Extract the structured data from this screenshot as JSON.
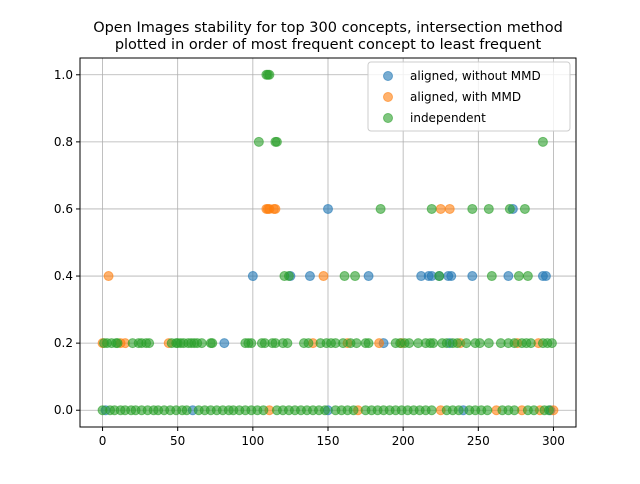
{
  "chart_data": {
    "type": "scatter",
    "title_lines": [
      "Open Images stability for top 300 concepts, intersection method",
      "plotted in order of most frequent concept to least frequent"
    ],
    "xlabel": "",
    "ylabel": "",
    "xlim": [
      -15,
      315
    ],
    "ylim": [
      -0.05,
      1.05
    ],
    "x_ticks": [
      0,
      50,
      100,
      150,
      200,
      250,
      300
    ],
    "y_ticks": [
      0.0,
      0.2,
      0.4,
      0.6,
      0.8,
      1.0
    ],
    "x_tick_labels": [
      "0",
      "50",
      "100",
      "150",
      "200",
      "250",
      "300"
    ],
    "y_tick_labels": [
      "0.0",
      "0.2",
      "0.4",
      "0.6",
      "0.8",
      "1.0"
    ],
    "grid": true,
    "legend_position": "top-right",
    "series": [
      {
        "name": "aligned, without MMD",
        "color": "#1f77b4",
        "points": [
          [
            100,
            0.4
          ],
          [
            125,
            0.4
          ],
          [
            138,
            0.4
          ],
          [
            150,
            0.6
          ],
          [
            177,
            0.4
          ],
          [
            212,
            0.4
          ],
          [
            217,
            0.4
          ],
          [
            219,
            0.4
          ],
          [
            224,
            0.4
          ],
          [
            230,
            0.4
          ],
          [
            232,
            0.4
          ],
          [
            246,
            0.4
          ],
          [
            270,
            0.4
          ],
          [
            273,
            0.6
          ],
          [
            293,
            0.4
          ],
          [
            295,
            0.4
          ],
          [
            81,
            0.2
          ],
          [
            187,
            0.2
          ],
          [
            231,
            0.2
          ],
          [
            2,
            0.0
          ],
          [
            60,
            0.0
          ],
          [
            150,
            0.0
          ],
          [
            240,
            0.0
          ],
          [
            298,
            0.0
          ]
        ]
      },
      {
        "name": "aligned, with MMD",
        "color": "#ff7f0e",
        "points": [
          [
            0,
            0.2
          ],
          [
            4,
            0.4
          ],
          [
            12,
            0.2
          ],
          [
            15,
            0.2
          ],
          [
            44,
            0.2
          ],
          [
            109,
            0.6
          ],
          [
            110,
            0.6
          ],
          [
            111,
            0.6
          ],
          [
            114,
            0.6
          ],
          [
            115,
            0.6
          ],
          [
            147,
            0.4
          ],
          [
            225,
            0.6
          ],
          [
            231,
            0.6
          ],
          [
            140,
            0.2
          ],
          [
            163,
            0.2
          ],
          [
            184,
            0.2
          ],
          [
            199,
            0.2
          ],
          [
            238,
            0.2
          ],
          [
            276,
            0.2
          ],
          [
            290,
            0.2
          ],
          [
            111,
            0.0
          ],
          [
            170,
            0.0
          ],
          [
            225,
            0.0
          ],
          [
            262,
            0.0
          ],
          [
            279,
            0.0
          ],
          [
            291,
            0.0
          ],
          [
            300,
            0.0
          ]
        ]
      },
      {
        "name": "independent",
        "color": "#2ca02c",
        "points": [
          [
            104,
            0.8
          ],
          [
            115,
            0.8
          ],
          [
            116,
            0.8
          ],
          [
            109,
            1.0
          ],
          [
            110,
            1.0
          ],
          [
            111,
            1.0
          ],
          [
            293,
            0.8
          ],
          [
            185,
            0.6
          ],
          [
            219,
            0.6
          ],
          [
            246,
            0.6
          ],
          [
            257,
            0.6
          ],
          [
            271,
            0.6
          ],
          [
            281,
            0.6
          ],
          [
            121,
            0.4
          ],
          [
            124,
            0.4
          ],
          [
            161,
            0.4
          ],
          [
            168,
            0.4
          ],
          [
            224,
            0.4
          ],
          [
            259,
            0.4
          ],
          [
            277,
            0.4
          ],
          [
            283,
            0.4
          ],
          [
            1,
            0.2
          ],
          [
            3,
            0.2
          ],
          [
            6,
            0.2
          ],
          [
            9,
            0.2
          ],
          [
            10,
            0.2
          ],
          [
            20,
            0.2
          ],
          [
            24,
            0.2
          ],
          [
            26,
            0.2
          ],
          [
            29,
            0.2
          ],
          [
            31,
            0.2
          ],
          [
            46,
            0.2
          ],
          [
            49,
            0.2
          ],
          [
            50,
            0.2
          ],
          [
            52,
            0.2
          ],
          [
            54,
            0.2
          ],
          [
            57,
            0.2
          ],
          [
            59,
            0.2
          ],
          [
            61,
            0.2
          ],
          [
            63,
            0.2
          ],
          [
            66,
            0.2
          ],
          [
            72,
            0.2
          ],
          [
            73,
            0.2
          ],
          [
            95,
            0.2
          ],
          [
            97,
            0.2
          ],
          [
            99,
            0.2
          ],
          [
            106,
            0.2
          ],
          [
            108,
            0.2
          ],
          [
            113,
            0.2
          ],
          [
            115,
            0.2
          ],
          [
            120,
            0.2
          ],
          [
            123,
            0.2
          ],
          [
            134,
            0.2
          ],
          [
            137,
            0.2
          ],
          [
            145,
            0.2
          ],
          [
            149,
            0.2
          ],
          [
            152,
            0.2
          ],
          [
            155,
            0.2
          ],
          [
            160,
            0.2
          ],
          [
            165,
            0.2
          ],
          [
            169,
            0.2
          ],
          [
            175,
            0.2
          ],
          [
            177,
            0.2
          ],
          [
            195,
            0.2
          ],
          [
            198,
            0.2
          ],
          [
            201,
            0.2
          ],
          [
            204,
            0.2
          ],
          [
            210,
            0.2
          ],
          [
            215,
            0.2
          ],
          [
            218,
            0.2
          ],
          [
            220,
            0.2
          ],
          [
            226,
            0.2
          ],
          [
            229,
            0.2
          ],
          [
            233,
            0.2
          ],
          [
            236,
            0.2
          ],
          [
            242,
            0.2
          ],
          [
            248,
            0.2
          ],
          [
            251,
            0.2
          ],
          [
            257,
            0.2
          ],
          [
            265,
            0.2
          ],
          [
            270,
            0.2
          ],
          [
            274,
            0.2
          ],
          [
            279,
            0.2
          ],
          [
            282,
            0.2
          ],
          [
            285,
            0.2
          ],
          [
            293,
            0.2
          ],
          [
            296,
            0.2
          ],
          [
            299,
            0.2
          ],
          [
            0,
            0.0
          ],
          [
            5,
            0.0
          ],
          [
            8,
            0.0
          ],
          [
            12,
            0.0
          ],
          [
            15,
            0.0
          ],
          [
            19,
            0.0
          ],
          [
            22,
            0.0
          ],
          [
            26,
            0.0
          ],
          [
            30,
            0.0
          ],
          [
            34,
            0.0
          ],
          [
            37,
            0.0
          ],
          [
            41,
            0.0
          ],
          [
            45,
            0.0
          ],
          [
            49,
            0.0
          ],
          [
            53,
            0.0
          ],
          [
            56,
            0.0
          ],
          [
            64,
            0.0
          ],
          [
            68,
            0.0
          ],
          [
            72,
            0.0
          ],
          [
            76,
            0.0
          ],
          [
            80,
            0.0
          ],
          [
            84,
            0.0
          ],
          [
            87,
            0.0
          ],
          [
            91,
            0.0
          ],
          [
            95,
            0.0
          ],
          [
            99,
            0.0
          ],
          [
            103,
            0.0
          ],
          [
            107,
            0.0
          ],
          [
            116,
            0.0
          ],
          [
            120,
            0.0
          ],
          [
            124,
            0.0
          ],
          [
            128,
            0.0
          ],
          [
            132,
            0.0
          ],
          [
            136,
            0.0
          ],
          [
            140,
            0.0
          ],
          [
            144,
            0.0
          ],
          [
            148,
            0.0
          ],
          [
            155,
            0.0
          ],
          [
            159,
            0.0
          ],
          [
            163,
            0.0
          ],
          [
            167,
            0.0
          ],
          [
            175,
            0.0
          ],
          [
            179,
            0.0
          ],
          [
            183,
            0.0
          ],
          [
            187,
            0.0
          ],
          [
            191,
            0.0
          ],
          [
            195,
            0.0
          ],
          [
            199,
            0.0
          ],
          [
            203,
            0.0
          ],
          [
            207,
            0.0
          ],
          [
            211,
            0.0
          ],
          [
            215,
            0.0
          ],
          [
            219,
            0.0
          ],
          [
            229,
            0.0
          ],
          [
            233,
            0.0
          ],
          [
            237,
            0.0
          ],
          [
            244,
            0.0
          ],
          [
            248,
            0.0
          ],
          [
            252,
            0.0
          ],
          [
            256,
            0.0
          ],
          [
            266,
            0.0
          ],
          [
            270,
            0.0
          ],
          [
            274,
            0.0
          ],
          [
            283,
            0.0
          ],
          [
            287,
            0.0
          ],
          [
            294,
            0.0
          ],
          [
            297,
            0.0
          ]
        ]
      }
    ]
  }
}
